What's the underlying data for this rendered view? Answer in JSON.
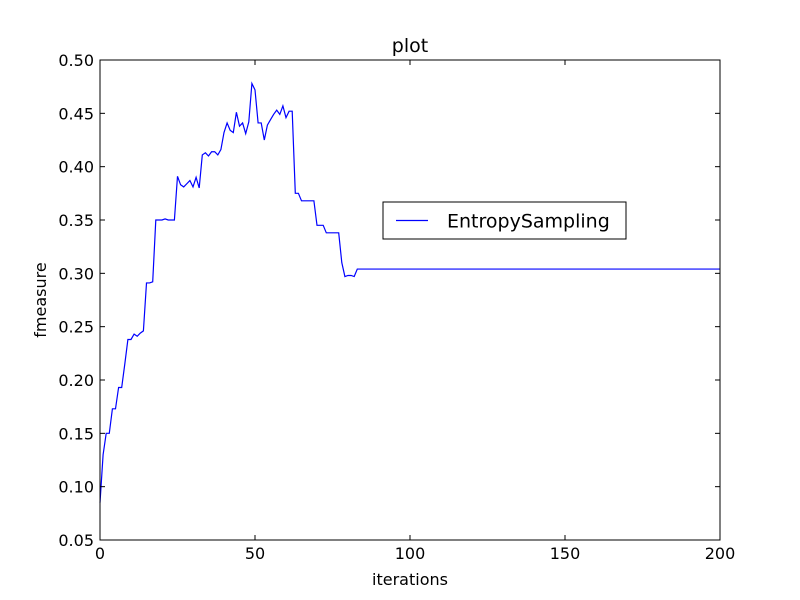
{
  "chart_data": {
    "type": "line",
    "title": "plot",
    "xlabel": "iterations",
    "ylabel": "fmeasure",
    "xlim": [
      0,
      200
    ],
    "ylim": [
      0.05,
      0.5
    ],
    "xticks": [
      0,
      50,
      100,
      150,
      200
    ],
    "xtick_labels": [
      "0",
      "50",
      "100",
      "150",
      "200"
    ],
    "yticks": [
      0.05,
      0.1,
      0.15,
      0.2,
      0.25,
      0.3,
      0.35,
      0.4,
      0.45,
      0.5
    ],
    "ytick_labels": [
      "0.05",
      "0.10",
      "0.15",
      "0.20",
      "0.25",
      "0.30",
      "0.35",
      "0.40",
      "0.45",
      "0.50"
    ],
    "grid": false,
    "legend": {
      "placement": "center-right"
    },
    "series": [
      {
        "name": "EntropySampling",
        "color": "#0000ff",
        "x": [
          0,
          1,
          2,
          3,
          4,
          5,
          6,
          7,
          8,
          9,
          10,
          11,
          12,
          13,
          14,
          15,
          16,
          17,
          18,
          19,
          20,
          21,
          22,
          23,
          24,
          25,
          26,
          27,
          28,
          29,
          30,
          31,
          32,
          33,
          34,
          35,
          36,
          37,
          38,
          39,
          40,
          41,
          42,
          43,
          44,
          45,
          46,
          47,
          48,
          49,
          50,
          51,
          52,
          53,
          54,
          55,
          56,
          57,
          58,
          59,
          60,
          61,
          62,
          63,
          64,
          65,
          66,
          67,
          68,
          69,
          70,
          71,
          72,
          73,
          74,
          75,
          76,
          77,
          78,
          79,
          80,
          81,
          82,
          83,
          84,
          200
        ],
        "y": [
          0.085,
          0.13,
          0.15,
          0.15,
          0.173,
          0.173,
          0.193,
          0.193,
          0.215,
          0.238,
          0.238,
          0.243,
          0.241,
          0.244,
          0.246,
          0.291,
          0.291,
          0.292,
          0.35,
          0.35,
          0.35,
          0.351,
          0.35,
          0.35,
          0.35,
          0.391,
          0.383,
          0.381,
          0.384,
          0.387,
          0.381,
          0.39,
          0.38,
          0.411,
          0.413,
          0.41,
          0.414,
          0.414,
          0.411,
          0.416,
          0.432,
          0.441,
          0.434,
          0.432,
          0.451,
          0.438,
          0.441,
          0.431,
          0.442,
          0.478,
          0.472,
          0.441,
          0.441,
          0.425,
          0.439,
          0.444,
          0.449,
          0.453,
          0.449,
          0.457,
          0.446,
          0.452,
          0.452,
          0.375,
          0.375,
          0.368,
          0.368,
          0.368,
          0.368,
          0.368,
          0.345,
          0.345,
          0.345,
          0.338,
          0.338,
          0.338,
          0.338,
          0.338,
          0.31,
          0.297,
          0.298,
          0.298,
          0.297,
          0.304,
          0.304,
          0.304
        ]
      }
    ]
  }
}
